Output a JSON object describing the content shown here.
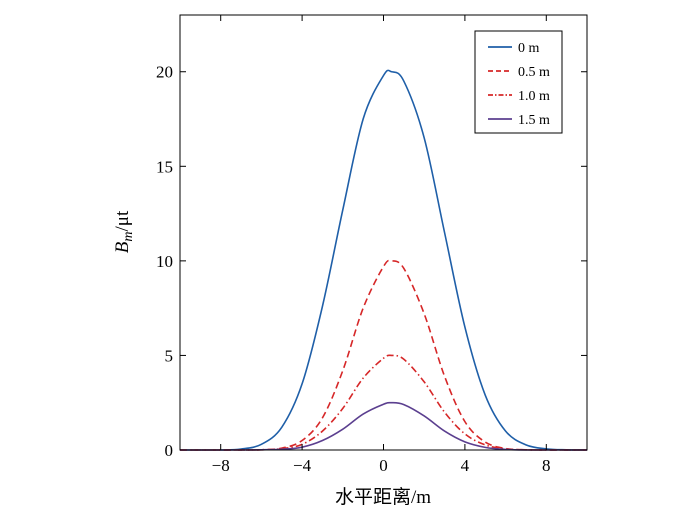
{
  "chart_data": {
    "type": "line",
    "xlabel": "水平距离/m",
    "ylabel_main": "B",
    "ylabel_sub": "m",
    "ylabel_unit": "/μt",
    "xlim": [
      -10,
      10
    ],
    "ylim": [
      0,
      23
    ],
    "xticks": [
      -8,
      -4,
      0,
      4,
      8
    ],
    "xtick_labels": [
      "−8",
      "−4",
      "0",
      "4",
      "8"
    ],
    "yticks": [
      0,
      5,
      10,
      15,
      20
    ],
    "ytick_labels": [
      "0",
      "5",
      "10",
      "15",
      "20"
    ],
    "grid": false,
    "legend_position": "top-right",
    "x": [
      -10,
      -9,
      -8,
      -7,
      -6,
      -5,
      -4,
      -3,
      -2,
      -1,
      0,
      0.4,
      1,
      2,
      3,
      4,
      5,
      6,
      7,
      8,
      9,
      10
    ],
    "series": [
      {
        "name": "0 m",
        "color": "#1f5fa8",
        "dash": "solid",
        "values": [
          0.0,
          0.0,
          0.0,
          0.05,
          0.3,
          1.2,
          3.5,
          7.6,
          12.7,
          17.5,
          19.8,
          20.0,
          19.5,
          16.5,
          11.5,
          6.5,
          2.9,
          1.0,
          0.27,
          0.06,
          0.01,
          0.0
        ]
      },
      {
        "name": "0.5 m",
        "color": "#d62728",
        "dash": "dash",
        "values": [
          0.0,
          0.0,
          0.0,
          0.0,
          0.01,
          0.1,
          0.5,
          1.7,
          4.2,
          7.5,
          9.7,
          10.0,
          9.6,
          7.2,
          3.9,
          1.5,
          0.42,
          0.08,
          0.01,
          0.0,
          0.0,
          0.0
        ]
      },
      {
        "name": "1.0 m",
        "color": "#d62728",
        "dash": "dashdot",
        "values": [
          0.0,
          0.0,
          0.0,
          0.0,
          0.01,
          0.07,
          0.3,
          1.0,
          2.2,
          3.8,
          4.85,
          5.0,
          4.8,
          3.6,
          2.0,
          0.85,
          0.27,
          0.06,
          0.01,
          0.0,
          0.0,
          0.0
        ]
      },
      {
        "name": "1.5 m",
        "color": "#5b3f8f",
        "dash": "solid",
        "values": [
          0.0,
          0.0,
          0.0,
          0.0,
          0.01,
          0.04,
          0.15,
          0.5,
          1.1,
          1.9,
          2.42,
          2.5,
          2.4,
          1.8,
          1.0,
          0.43,
          0.14,
          0.03,
          0.0,
          0.0,
          0.0,
          0.0
        ]
      }
    ]
  }
}
